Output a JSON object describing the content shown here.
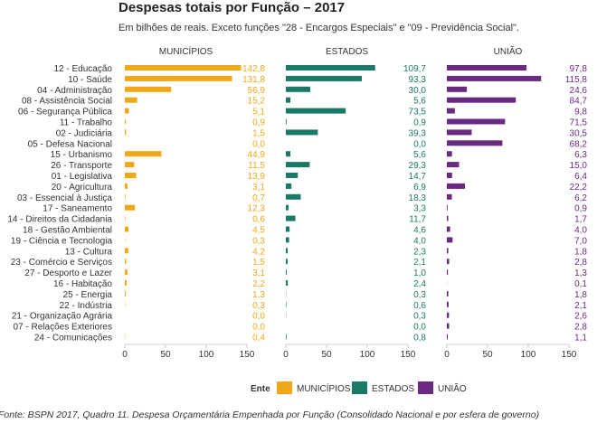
{
  "title": "Despesas totais por Função  –  2017",
  "subtitle": "Em bilhões de reais. Exceto funções \"28 - Encargos Especiais\" e \"09 - Previdência Social\".",
  "source": "Fonte: BSPN 2017, Quadro 11. Despesa Orçamentária Empenhada por Função (Consolidado Nacional e por esfera de governo)",
  "legend": {
    "title": "Ente"
  },
  "colors": {
    "municipios": "#f0a818",
    "estados": "#1a7a66",
    "uniao": "#6a2a80",
    "axis": "#cccccc"
  },
  "chart_data": {
    "type": "bar",
    "orientation": "horizontal",
    "categories": [
      "12 - Educação",
      "10 - Saúde",
      "04 - Administração",
      "08 - Assistência Social",
      "06 - Segurança Pública",
      "11 - Trabalho",
      "02 - Judiciária",
      "05 - Defesa Nacional",
      "15 - Urbanismo",
      "26 - Transporte",
      "01 - Legislativa",
      "20 - Agricultura",
      "03 - Essencial à Justiça",
      "17 - Saneamento",
      "14 - Direitos da Cidadania",
      "18 - Gestão Ambiental",
      "19 - Ciência e Tecnologia",
      "13 - Cultura",
      "23 - Comércio e Serviços",
      "27 - Desporto e Lazer",
      "16 - Habitação",
      "25 - Energia",
      "22 - Indústria",
      "21 - Organização Agrária",
      "07 - Relações Exteriores",
      "24 - Comunicações"
    ],
    "series": [
      {
        "name": "MUNICÍPIOS",
        "color": "#f0a818",
        "values": [
          142.8,
          131.8,
          56.9,
          15.2,
          5.1,
          0.9,
          1.5,
          0.0,
          44.9,
          11.5,
          13.9,
          3.1,
          0.7,
          12.3,
          0.6,
          4.5,
          0.3,
          4.2,
          1.5,
          3.1,
          2.2,
          1.3,
          0.3,
          0.0,
          0.0,
          0.4
        ],
        "labels": [
          "142,8",
          "131,8",
          "56,9",
          "15,2",
          "5,1",
          "0,9",
          "1,5",
          "0,0",
          "44,9",
          "11,5",
          "13,9",
          "3,1",
          "0,7",
          "12,3",
          "0,6",
          "4,5",
          "0,3",
          "4,2",
          "1,5",
          "3,1",
          "2,2",
          "1,3",
          "0,3",
          "0,0",
          "0,0",
          "0,4"
        ]
      },
      {
        "name": "ESTADOS",
        "color": "#1a7a66",
        "values": [
          109.7,
          93.3,
          30.0,
          5.6,
          73.5,
          0.9,
          39.3,
          0.0,
          5.6,
          29.3,
          14.7,
          6.9,
          18.3,
          3.3,
          11.7,
          4.6,
          4.0,
          2.3,
          2.1,
          1.0,
          2.4,
          0.3,
          0.6,
          0.3,
          0.0,
          0.8
        ],
        "labels": [
          "109,7",
          "93,3",
          "30,0",
          "5,6",
          "73,5",
          "0,9",
          "39,3",
          "0,0",
          "5,6",
          "29,3",
          "14,7",
          "6,9",
          "18,3",
          "3,3",
          "11,7",
          "4,6",
          "4,0",
          "2,3",
          "2,1",
          "1,0",
          "2,4",
          "0,3",
          "0,6",
          "0,3",
          "0,0",
          "0,8"
        ]
      },
      {
        "name": "UNIÃO",
        "color": "#6a2a80",
        "values": [
          97.8,
          115.8,
          24.6,
          84.7,
          9.8,
          71.5,
          30.5,
          68.2,
          6.3,
          15.0,
          6.4,
          22.2,
          6.2,
          0.9,
          1.7,
          4.0,
          7.0,
          1.8,
          2.8,
          1.3,
          0.1,
          1.8,
          2.1,
          2.6,
          2.8,
          1.1
        ],
        "labels": [
          "97,8",
          "115,8",
          "24,6",
          "84,7",
          "9,8",
          "71,5",
          "30,5",
          "68,2",
          "6,3",
          "15,0",
          "6,4",
          "22,2",
          "6,2",
          "0,9",
          "1,7",
          "4,0",
          "7,0",
          "1,8",
          "2,8",
          "1,3",
          "0,1",
          "1,8",
          "2,1",
          "2,6",
          "2,8",
          "1,1"
        ]
      }
    ],
    "xlim": [
      0,
      150
    ],
    "xticks": [
      0,
      50,
      100,
      150
    ],
    "xtick_labels": [
      "0",
      "50",
      "100",
      "150"
    ],
    "legend_position": "bottom-center",
    "grid": false
  }
}
